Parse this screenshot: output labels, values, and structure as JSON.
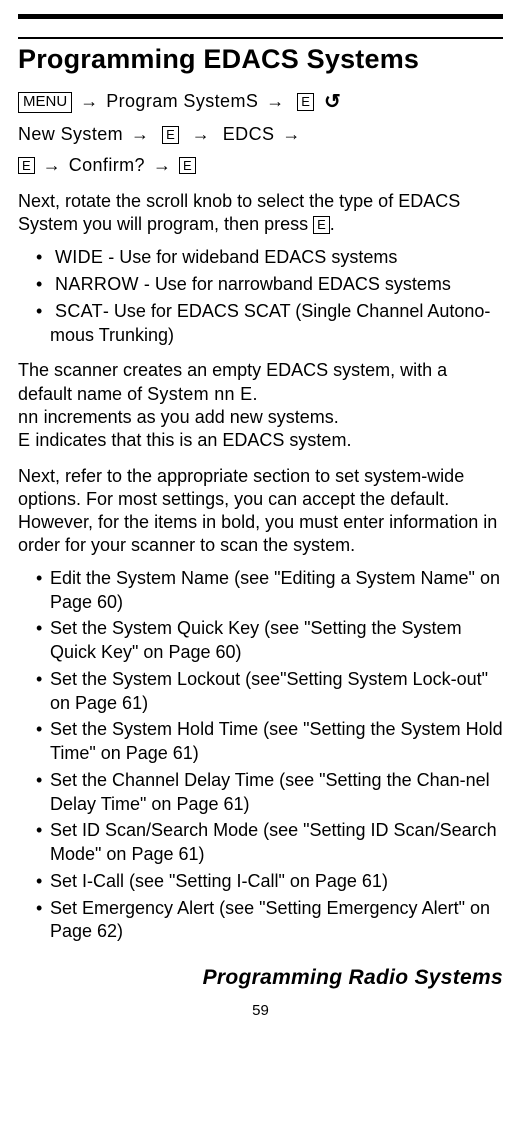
{
  "title": "Programming EDACS Systems",
  "keys": {
    "menu": "MENU",
    "e": "E"
  },
  "seq": {
    "program_system": "Program SystemS",
    "new_system": "New System",
    "edcs": "EDCS",
    "confirm": "Confirm?"
  },
  "intro_para_a": "Next, rotate the scroll knob to select the type of EDACS System you will program, then press ",
  "intro_para_b": ".",
  "types": [
    {
      "code": "WIDE",
      "sep": " - ",
      "desc": "Use for wideband EDACS systems"
    },
    {
      "code": "NARROW",
      "sep": " - ",
      "desc": "Use for narrowband EDACS systems"
    },
    {
      "code": "SCAT",
      "sep": "- ",
      "desc": "Use for EDACS SCAT (Single Channel Autono-mous Trunking)"
    }
  ],
  "sys_para": {
    "l1_a": "The scanner creates an empty EDACS system, with a default name of ",
    "l1_code": "System nn             E",
    "l1_b": ".",
    "l2_code": "nn",
    "l2_rest": " increments as you add new systems.",
    "l3_code": "E",
    "l3_rest": " indicates that this is an EDACS system."
  },
  "options_intro": "Next, refer to the appropriate section to set system-wide options. For most settings, you can accept the default. However, for the items in bold, you must enter information in order for your scanner to scan the system.",
  "options": [
    "Edit the System Name (see \"Editing a System Name\" on Page 60)",
    "Set the System Quick Key (see \"Setting the System Quick Key\" on Page 60)",
    "Set the System Lockout (see\"Setting System Lock-out\" on Page 61)",
    "Set the System Hold Time (see \"Setting the System Hold Time\" on Page 61)",
    "Set the Channel Delay Time (see \"Setting the Chan-nel Delay Time\" on Page 61)",
    "Set ID Scan/Search Mode (see \"Setting ID Scan/Search Mode\" on Page 61)",
    "Set I-Call (see \"Setting I-Call\" on Page 61)",
    "Set Emergency Alert  (see \"Setting Emergency Alert\" on Page 62)"
  ],
  "footer": "Programming Radio Systems",
  "page_number": "59"
}
